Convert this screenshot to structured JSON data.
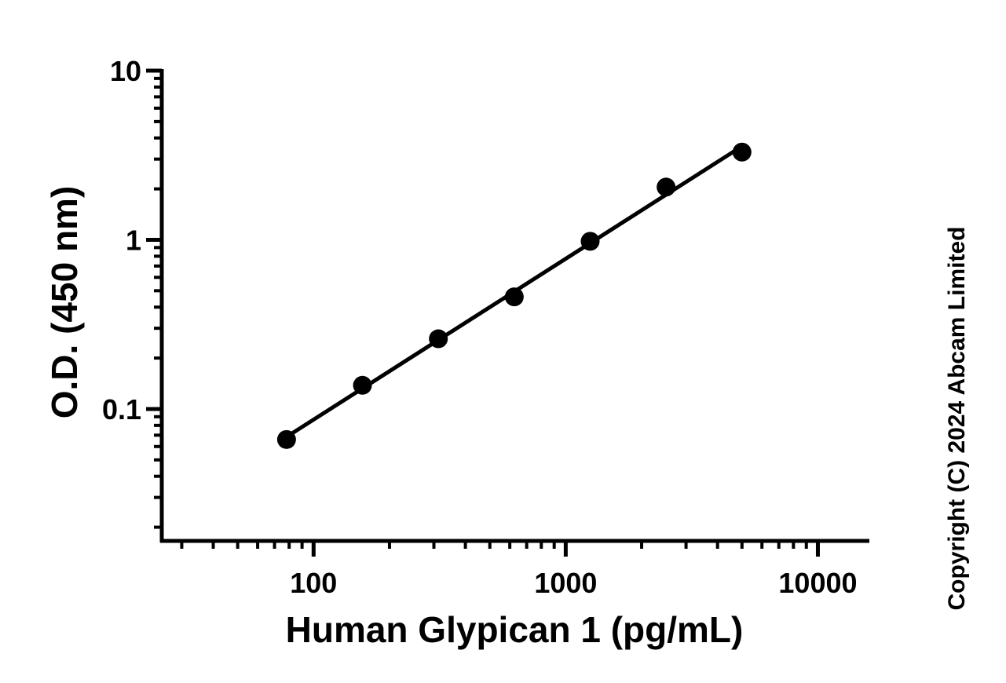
{
  "chart_data": {
    "type": "scatter",
    "title": "",
    "xlabel": "Human Glypican 1 (pg/mL)",
    "ylabel": "O.D. (450 nm)",
    "x_scale": "log",
    "y_scale": "log",
    "xlim": [
      25,
      16000
    ],
    "ylim": [
      0.0166,
      10
    ],
    "x_ticks": [
      {
        "value": 100,
        "label": "100"
      },
      {
        "value": 1000,
        "label": "1000"
      },
      {
        "value": 10000,
        "label": "10000"
      }
    ],
    "y_ticks": [
      {
        "value": 10,
        "label": "10"
      },
      {
        "value": 1,
        "label": "1"
      },
      {
        "value": 0.1,
        "label": "0.1"
      }
    ],
    "grid": false,
    "legend": "none",
    "series": [
      {
        "color": "#000000",
        "marker": "circle",
        "fit_line": true,
        "points": [
          {
            "x": 78.125,
            "y": 0.066
          },
          {
            "x": 156.25,
            "y": 0.138
          },
          {
            "x": 312.5,
            "y": 0.26
          },
          {
            "x": 625,
            "y": 0.46
          },
          {
            "x": 1250,
            "y": 0.98
          },
          {
            "x": 2500,
            "y": 2.05
          },
          {
            "x": 5000,
            "y": 3.3
          }
        ]
      }
    ]
  },
  "copyright": "Copyright (C) 2024 Abcam Limited"
}
